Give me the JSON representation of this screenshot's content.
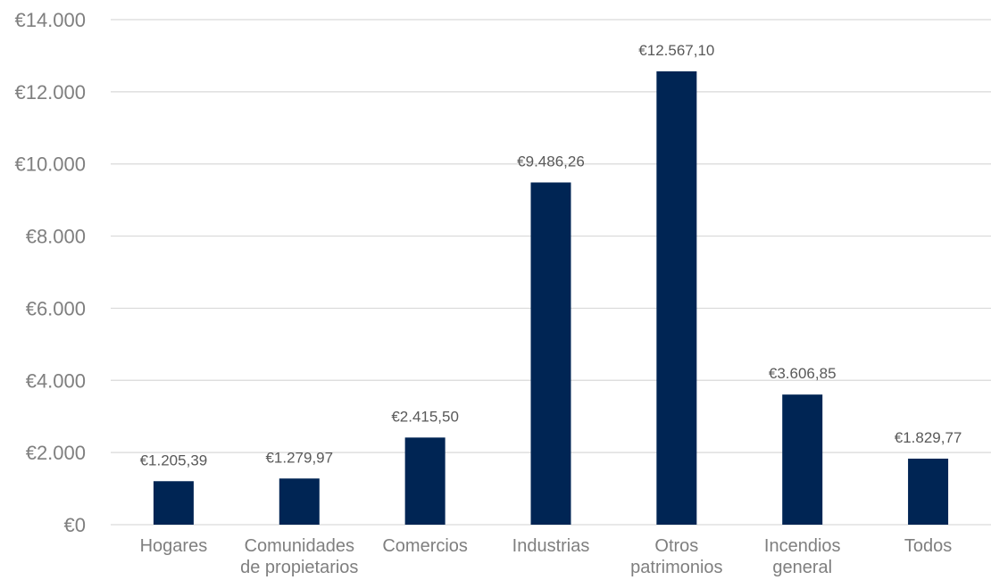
{
  "chart_data": {
    "type": "bar",
    "title": "",
    "xlabel": "",
    "ylabel": "",
    "categories": [
      [
        "Hogares"
      ],
      [
        "Comunidades",
        "de propietarios"
      ],
      [
        "Comercios"
      ],
      [
        "Industrias"
      ],
      [
        "Otros",
        "patrimonios"
      ],
      [
        "Incendios",
        "general"
      ],
      [
        "Todos"
      ]
    ],
    "values": [
      1205.39,
      1279.97,
      2415.5,
      9486.26,
      12567.1,
      3606.85,
      1829.77
    ],
    "value_labels": [
      "€1.205,39",
      "€1.279,97",
      "€2.415,50",
      "€9.486,26",
      "€12.567,10",
      "€3.606,85",
      "€1.829,77"
    ],
    "yticks": [
      0,
      2000,
      4000,
      6000,
      8000,
      10000,
      12000,
      14000
    ],
    "ytick_labels": [
      "€0",
      "€2.000",
      "€4.000",
      "€6.000",
      "€8.000",
      "€10.000",
      "€12.000",
      "€14.000"
    ],
    "ylim": [
      0,
      14000
    ],
    "grid": true,
    "colors": {
      "bar": "#002554",
      "grid": "#d9d9d9",
      "tick_text": "#7f7f7f",
      "label_text": "#595959"
    }
  }
}
